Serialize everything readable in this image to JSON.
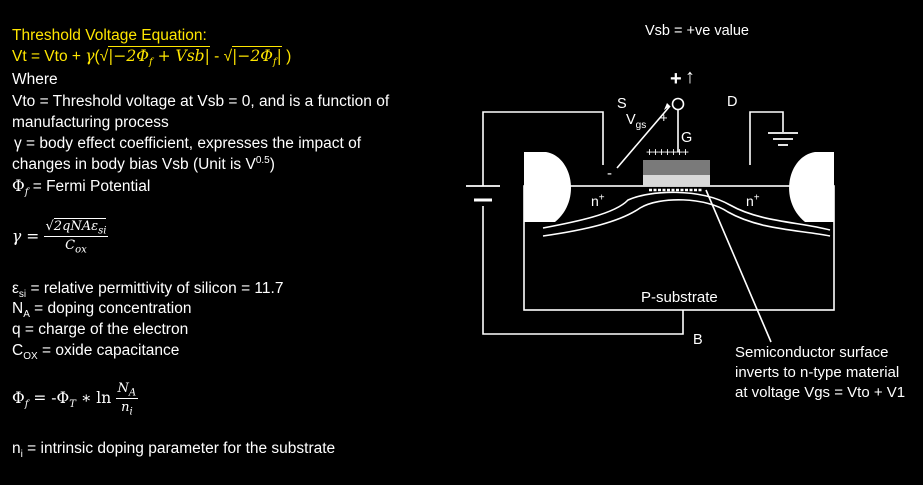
{
  "left": {
    "title": "Threshold Voltage Equation:",
    "eq_lhs": "Vt = Vto +",
    "eq_gamma": "γ",
    "eq_term1": "|−2Φ",
    "eq_term1_sub": "f",
    "eq_term1_tail": " + Vsb|",
    "eq_minus": "-",
    "eq_term2": "|−2Φ",
    "eq_term2_sub": "f",
    "eq_term2_tail": "|",
    "eq_close": ")",
    "where": "Where",
    "vto_line1": "Vto = Threshold voltage at Vsb = 0, and is a function of",
    "vto_line2": "manufacturing process",
    "gamma_line1": "γ = body effect coefficient, expresses the impact of",
    "gamma_line2_pre": "changes in body bias Vsb (Unit is V",
    "gamma_line2_sup": "0.5",
    "gamma_line2_post": ")",
    "phi_f_sym": "Φ",
    "phi_f_sub": "f",
    "phi_f_text": " = Fermi Potential",
    "gamma_formula_lhs": "γ =",
    "gamma_formula_num": "2qNAε",
    "gamma_formula_num_sub": "si",
    "gamma_formula_den": "C",
    "gamma_formula_den_sub": "ox",
    "esi_sym": "ε",
    "esi_sub": "si",
    "esi_text": " = relative permittivity of silicon = 11.7",
    "na_sym": "N",
    "na_sub": "A",
    "na_text": " = doping concentration",
    "q_text": "q = charge of the electron",
    "cox_sym": "C",
    "cox_sub": "OX",
    "cox_text": " = oxide capacitance",
    "phif_lhs": "Φ",
    "phif_lhs_sub": "f",
    "phif_eq": " = -Φ",
    "phif_t_sub": "T",
    "phif_ln": " ∗ ln",
    "phif_num": "N",
    "phif_num_sub": "A",
    "phif_den": "n",
    "phif_den_sub": "i",
    "ni_sym": "n",
    "ni_sub": "i",
    "ni_text": " = intrinsic doping parameter for the substrate"
  },
  "diagram": {
    "vsb_caption": "Vsb = +ve value",
    "label_s": "S",
    "label_d": "D",
    "label_g": "G",
    "label_b": "B",
    "label_vgs": "V",
    "label_vgs_sub": "gs",
    "plus_top": "+",
    "arrow_up": "↑",
    "plus_small": "+",
    "minus_small": "-",
    "gate_charges": "+++++++",
    "n_plus_left": "n",
    "n_plus_right": "n",
    "n_plus_sup": "+",
    "substrate": "P-substrate",
    "note_line1": "Semiconductor surface",
    "note_line2": "inverts to n-type material",
    "note_line3": "at voltage Vgs = Vto + V1"
  }
}
